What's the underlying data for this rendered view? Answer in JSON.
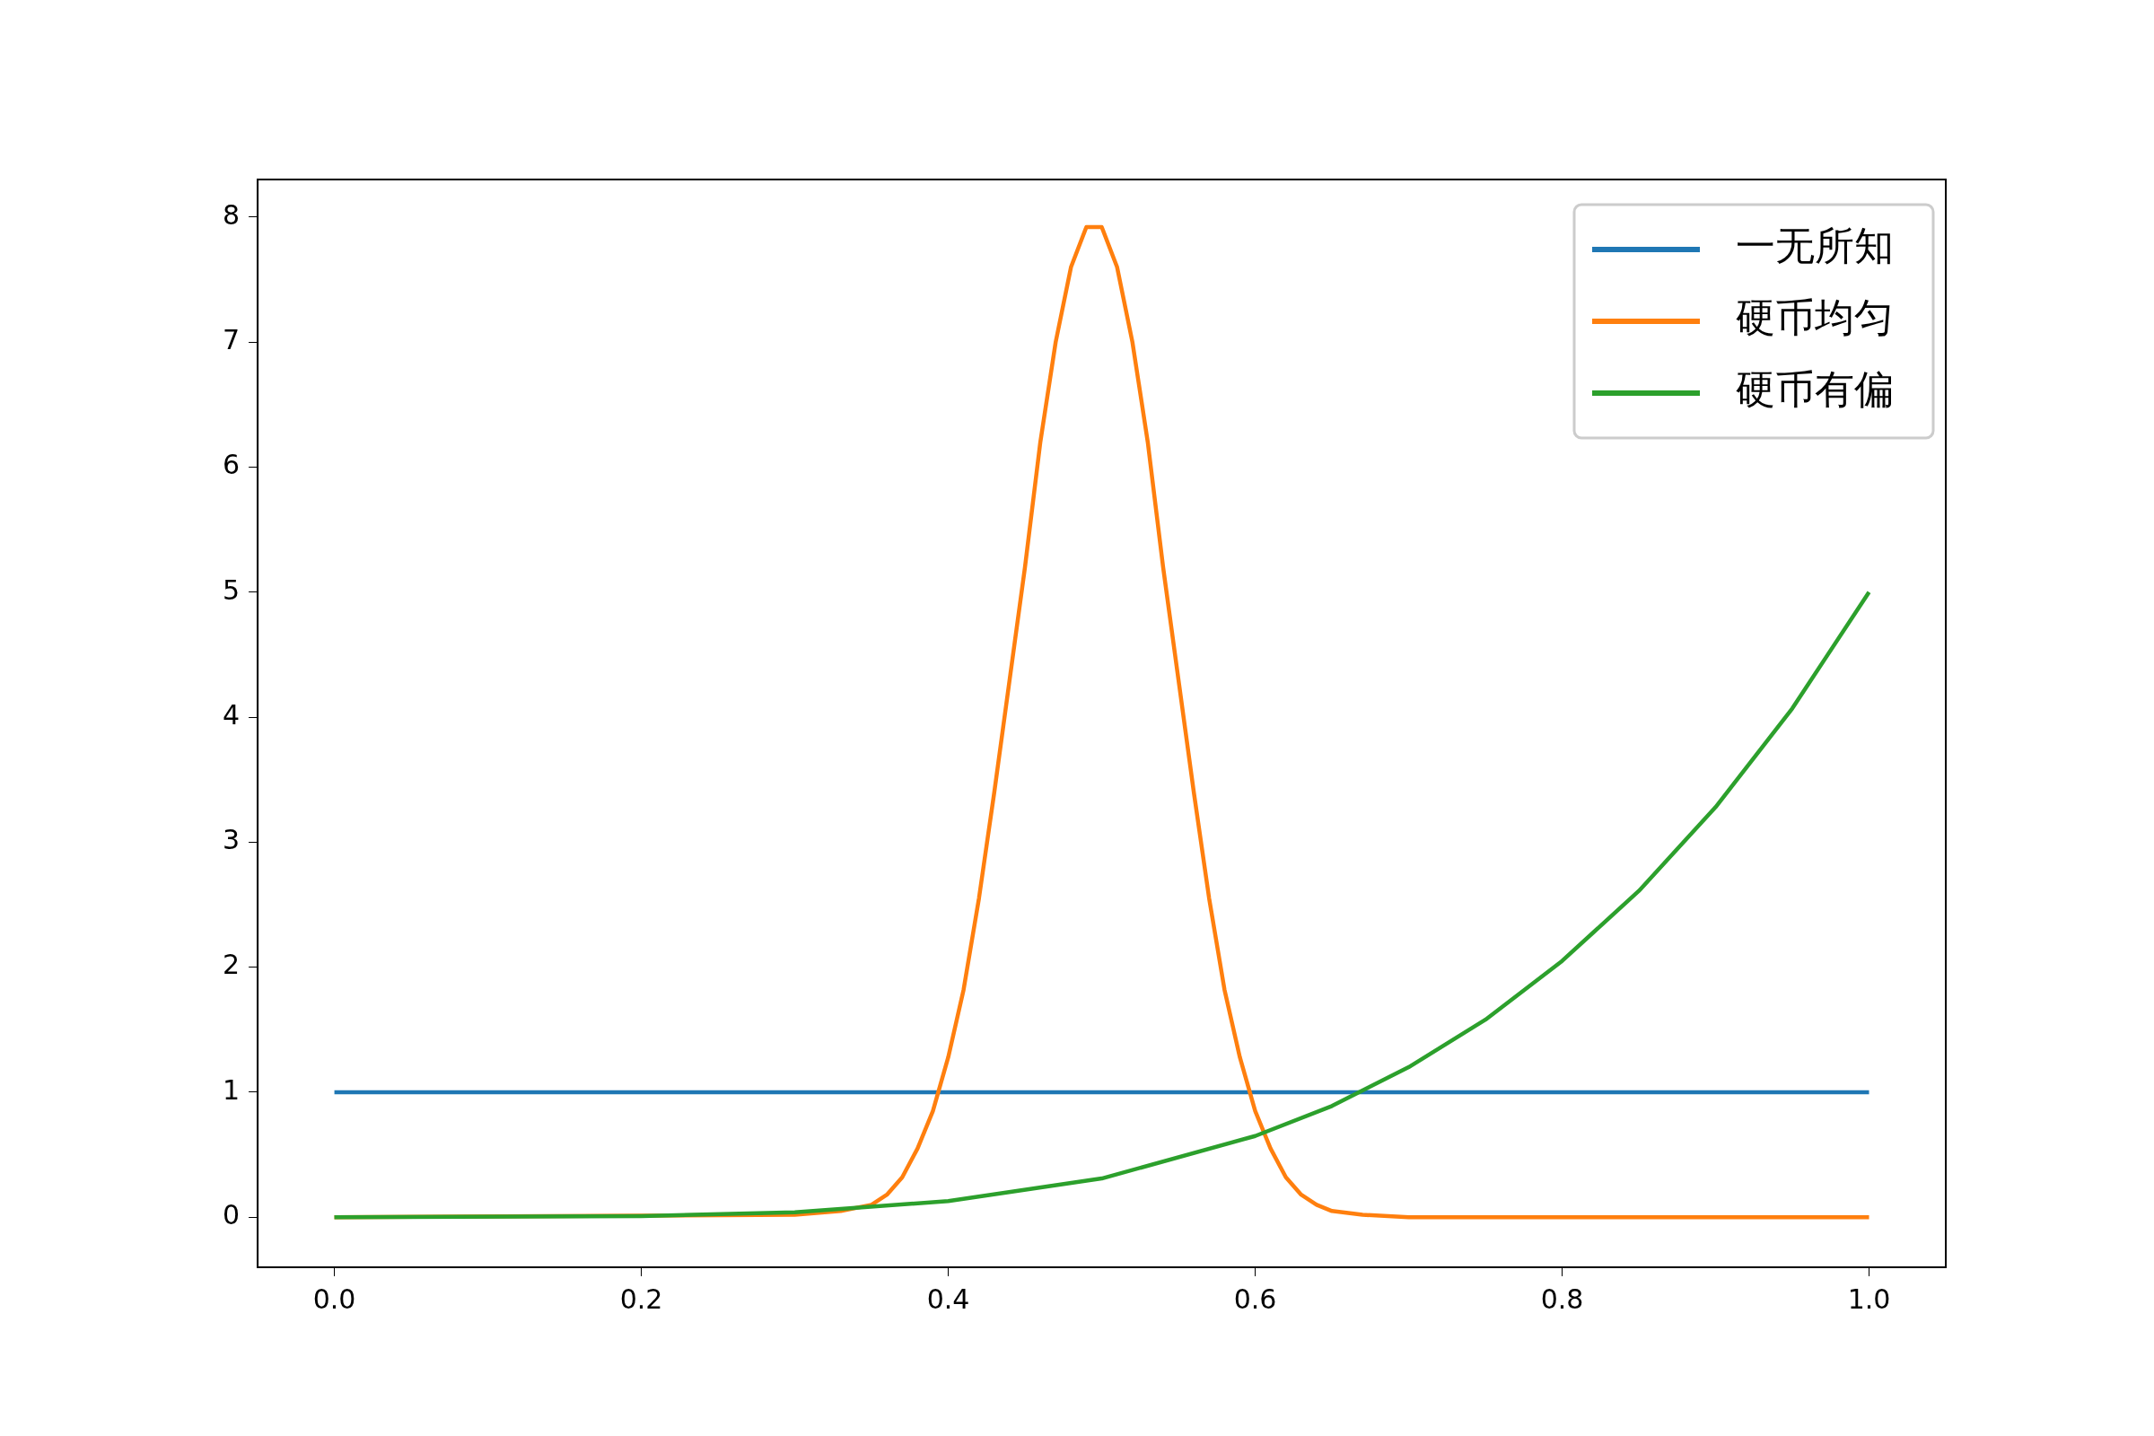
{
  "chart_data": {
    "type": "line",
    "xlim": [
      -0.05,
      1.05
    ],
    "ylim": [
      -0.4,
      8.3
    ],
    "xticks": [
      {
        "value": 0,
        "label": "0.0"
      },
      {
        "value": 0.2,
        "label": "0.2"
      },
      {
        "value": 0.4,
        "label": "0.4"
      },
      {
        "value": 0.6,
        "label": "0.6"
      },
      {
        "value": 0.8,
        "label": "0.8"
      },
      {
        "value": 1,
        "label": "1.0"
      }
    ],
    "yticks": [
      0,
      1,
      2,
      3,
      4,
      5,
      6,
      7,
      8
    ],
    "grid": false,
    "legend": "top right",
    "marker": "none",
    "line_style": "solid",
    "series": [
      {
        "name": "一无所知",
        "color": "#1f77b4",
        "x": [
          0,
          1
        ],
        "values": [
          1,
          1
        ]
      },
      {
        "name": "硬币均匀",
        "color": "#ff7f0e",
        "x": [
          0,
          0.3,
          0.33,
          0.35,
          0.36,
          0.37,
          0.38,
          0.39,
          0.4,
          0.41,
          0.42,
          0.43,
          0.44,
          0.45,
          0.46,
          0.47,
          0.48,
          0.49,
          0.5,
          0.51,
          0.52,
          0.53,
          0.54,
          0.55,
          0.56,
          0.57,
          0.58,
          0.59,
          0.6,
          0.61,
          0.62,
          0.63,
          0.64,
          0.65,
          0.67,
          0.7,
          1
        ],
        "values": [
          0,
          0.02,
          0.05,
          0.1,
          0.18,
          0.32,
          0.55,
          0.85,
          1.28,
          1.82,
          2.55,
          3.4,
          4.3,
          5.2,
          6.2,
          7,
          7.6,
          7.92,
          7.92,
          7.6,
          7,
          6.2,
          5.2,
          4.3,
          3.4,
          2.55,
          1.82,
          1.28,
          0.85,
          0.55,
          0.32,
          0.18,
          0.1,
          0.05,
          0.02,
          0,
          0
        ]
      },
      {
        "name": "硬币有偏",
        "color": "#2ca02c",
        "x": [
          0,
          0.2,
          0.3,
          0.4,
          0.5,
          0.6,
          0.65,
          0.7,
          0.75,
          0.8,
          0.85,
          0.9,
          0.95,
          1
        ],
        "values": [
          0,
          0.01,
          0.04,
          0.13,
          0.31,
          0.65,
          0.89,
          1.2,
          1.58,
          2.05,
          2.61,
          3.28,
          4.07,
          5
        ]
      }
    ]
  }
}
